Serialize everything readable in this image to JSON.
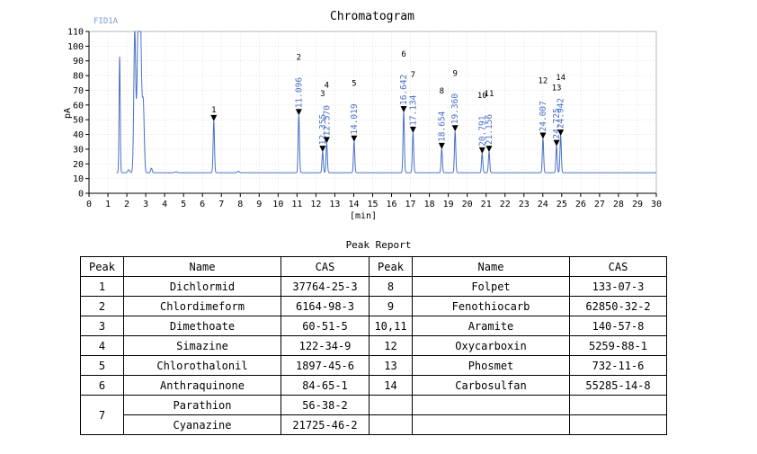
{
  "chart_data": {
    "type": "line",
    "title": "Chromatogram",
    "detector": "FID1A",
    "xlabel": "[min]",
    "ylabel": "pA",
    "xlim": [
      0,
      30
    ],
    "ylim": [
      0,
      110
    ],
    "xticks": [
      0,
      1,
      2,
      3,
      4,
      5,
      6,
      7,
      8,
      9,
      10,
      11,
      12,
      13,
      14,
      15,
      16,
      17,
      18,
      19,
      20,
      21,
      22,
      23,
      24,
      25,
      26,
      27,
      28,
      29,
      30
    ],
    "yticks": [
      0,
      10,
      20,
      30,
      40,
      50,
      60,
      70,
      80,
      90,
      100,
      110
    ],
    "grid": true,
    "line_color": "#4a72c8",
    "baseline": 14,
    "solvent_peaks": [
      {
        "x": 1.62,
        "y": 93,
        "w": 0.03
      },
      {
        "x": 2.1,
        "y": 16,
        "w": 0.05
      },
      {
        "x": 2.42,
        "y": 110,
        "w": 0.05
      },
      {
        "x": 2.6,
        "y": 110,
        "w": 0.06
      },
      {
        "x": 2.72,
        "y": 110,
        "w": 0.06
      },
      {
        "x": 2.87,
        "y": 60,
        "w": 0.05
      },
      {
        "x": 3.3,
        "y": 17,
        "w": 0.04
      },
      {
        "x": 4.6,
        "y": 14.6,
        "w": 0.06
      },
      {
        "x": 7.9,
        "y": 15,
        "w": 0.05
      }
    ],
    "peaks": [
      {
        "label": "1",
        "x": 6.6,
        "y": 49,
        "rt": ""
      },
      {
        "label": "2",
        "x": 11.096,
        "y": 53,
        "rt": "11.096"
      },
      {
        "label": "3",
        "x": 12.355,
        "y": 28,
        "rt": "12.355"
      },
      {
        "label": "4",
        "x": 12.57,
        "y": 34,
        "rt": "12.570"
      },
      {
        "label": "5",
        "x": 14.019,
        "y": 35,
        "rt": "14.019"
      },
      {
        "label": "6",
        "x": 16.642,
        "y": 55,
        "rt": "16.642"
      },
      {
        "label": "7",
        "x": 17.134,
        "y": 41,
        "rt": "17.134"
      },
      {
        "label": "8",
        "x": 18.654,
        "y": 30,
        "rt": "18.654"
      },
      {
        "label": "9",
        "x": 19.36,
        "y": 42,
        "rt": "19.360"
      },
      {
        "label": "10",
        "x": 20.791,
        "y": 27,
        "rt": "20.791"
      },
      {
        "label": "11",
        "x": 21.156,
        "y": 28,
        "rt": "21.156"
      },
      {
        "label": "12",
        "x": 24.007,
        "y": 37,
        "rt": "24.007"
      },
      {
        "label": "13",
        "x": 24.725,
        "y": 32,
        "rt": "24.725"
      },
      {
        "label": "14",
        "x": 24.942,
        "y": 39,
        "rt": "24.942"
      }
    ]
  },
  "report": {
    "title": "Peak Report",
    "headers": [
      "Peak",
      "Name",
      "CAS",
      "Peak",
      "Name",
      "CAS"
    ],
    "left": [
      {
        "peak": "1",
        "name": "Dichlormid",
        "cas": "37764-25-3"
      },
      {
        "peak": "2",
        "name": "Chlordimeform",
        "cas": "6164-98-3"
      },
      {
        "peak": "3",
        "name": "Dimethoate",
        "cas": "60-51-5"
      },
      {
        "peak": "4",
        "name": "Simazine",
        "cas": "122-34-9"
      },
      {
        "peak": "5",
        "name": "Chlorothalonil",
        "cas": "1897-45-6"
      },
      {
        "peak": "6",
        "name": "Anthraquinone",
        "cas": "84-65-1"
      },
      {
        "peak": "7",
        "name": "Parathion",
        "cas": "56-38-2"
      },
      {
        "peak": "",
        "name": "Cyanazine",
        "cas": "21725-46-2"
      }
    ],
    "right": [
      {
        "peak": "8",
        "name": "Folpet",
        "cas": "133-07-3"
      },
      {
        "peak": "9",
        "name": "Fenothiocarb",
        "cas": "62850-32-2"
      },
      {
        "peak": "10,11",
        "name": "Aramite",
        "cas": "140-57-8"
      },
      {
        "peak": "12",
        "name": "Oxycarboxin",
        "cas": "5259-88-1"
      },
      {
        "peak": "13",
        "name": "Phosmet",
        "cas": "732-11-6"
      },
      {
        "peak": "14",
        "name": "Carbosulfan",
        "cas": "55285-14-8"
      },
      {
        "peak": "",
        "name": "",
        "cas": ""
      },
      {
        "peak": "",
        "name": "",
        "cas": ""
      }
    ]
  }
}
